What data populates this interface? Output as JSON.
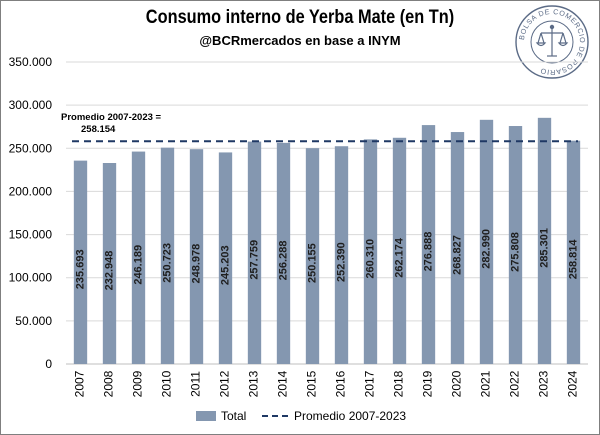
{
  "chart_data": {
    "type": "bar",
    "title": "Consumo interno de Yerba Mate (en Tn)",
    "subtitle": "@BCRmercados en base a INYM",
    "categories": [
      "2007",
      "2008",
      "2009",
      "2010",
      "2011",
      "2012",
      "2013",
      "2014",
      "2015",
      "2016",
      "2017",
      "2018",
      "2019",
      "2020",
      "2021",
      "2022",
      "2023",
      "2024"
    ],
    "series": [
      {
        "name": "Total",
        "values": [
          235693,
          232948,
          246189,
          250723,
          248978,
          245203,
          257759,
          256288,
          250155,
          252390,
          260310,
          262174,
          276888,
          268827,
          282990,
          275808,
          285301,
          258814
        ],
        "labels": [
          "235.693",
          "232.948",
          "246.189",
          "250.723",
          "248.978",
          "245.203",
          "257.759",
          "256.288",
          "250.155",
          "252.390",
          "260.310",
          "262.174",
          "276.888",
          "268.827",
          "282.990",
          "275.808",
          "285.301",
          "258.814"
        ],
        "color": "#8497b0"
      }
    ],
    "average": {
      "name": "Promedio 2007-2023",
      "value": 258154,
      "annotation_line1": "Promedio 2007-2023 =",
      "annotation_line2": "258.154",
      "color": "#1f3864"
    },
    "ylim": [
      0,
      350000
    ],
    "yticks": [
      0,
      50000,
      100000,
      150000,
      200000,
      250000,
      300000,
      350000
    ],
    "ytick_labels": [
      "0",
      "50.000",
      "100.000",
      "150.000",
      "200.000",
      "250.000",
      "300.000",
      "350.000"
    ],
    "grid": true,
    "legend_position": "bottom"
  },
  "logo": {
    "text": "BOLSA DE COMERCIO DE ROSARIO",
    "icon": "scales-of-justice-icon",
    "color": "#5b6b86"
  }
}
